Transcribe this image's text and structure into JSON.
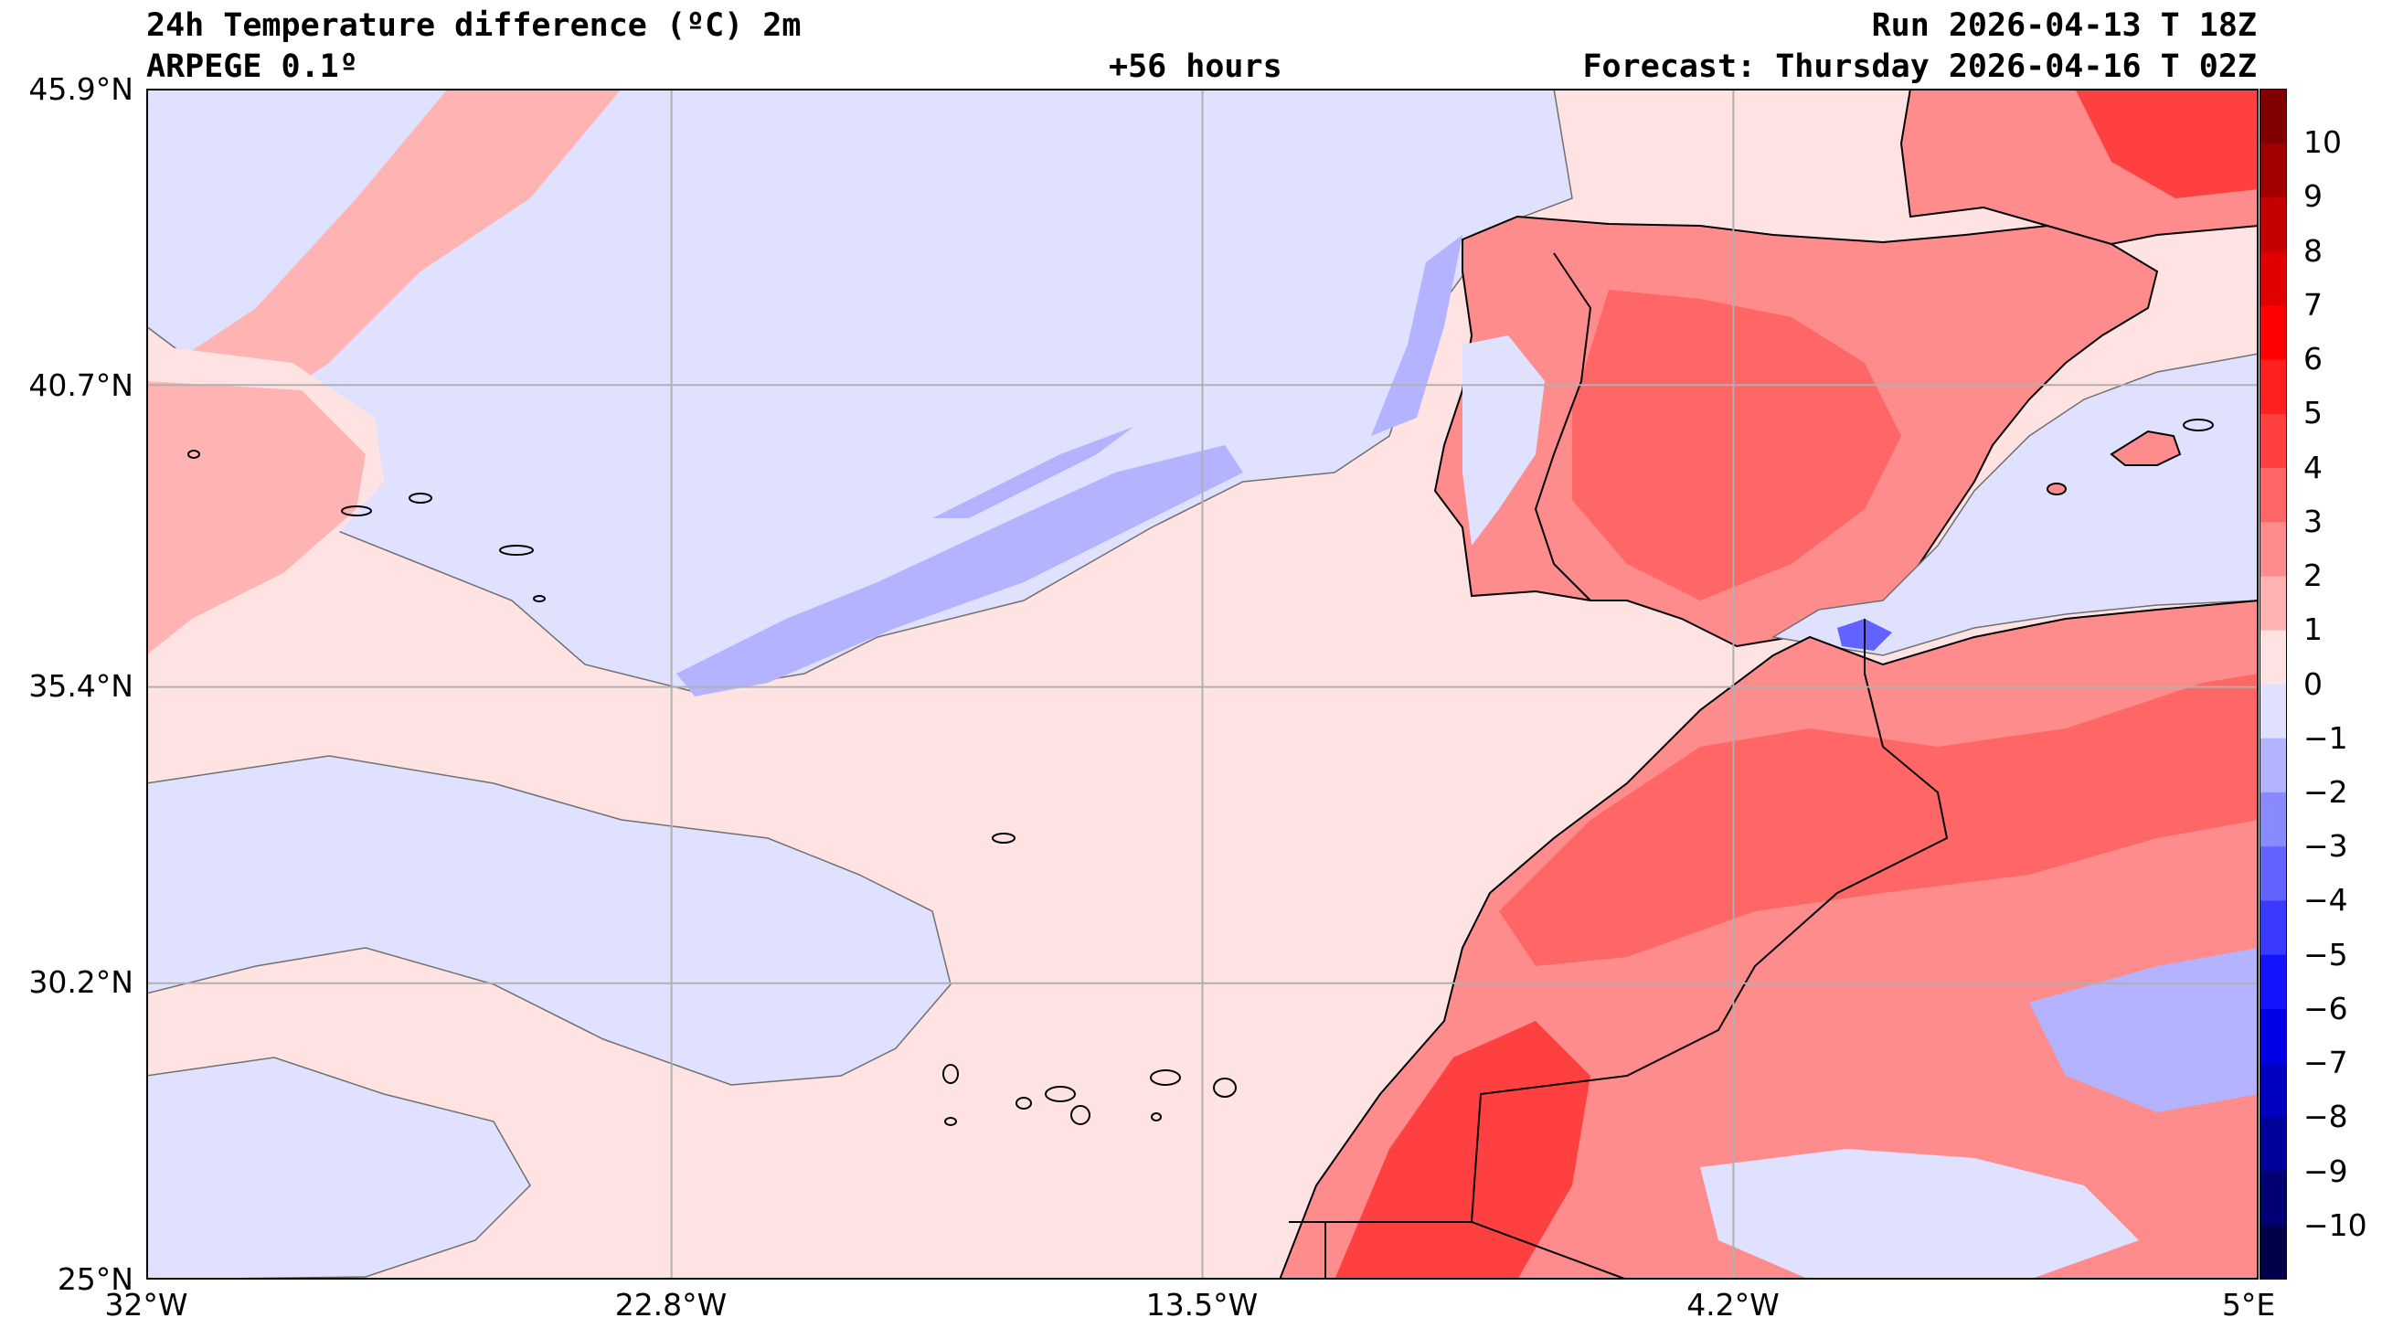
{
  "header": {
    "title": "24h Temperature difference (ºC) 2m",
    "model": "ARPEGE 0.1º",
    "lead_time": "+56 hours",
    "run": "Run 2026-04-13 T 18Z",
    "forecast": "Forecast: Thursday 2026-04-16 T 02Z"
  },
  "axes": {
    "lat_labels": [
      "45.9°N",
      "40.7°N",
      "35.4°N",
      "30.2°N",
      "25°N"
    ],
    "lon_labels": [
      "32°W",
      "22.8°W",
      "13.5°W",
      "4.2°W",
      "5°E"
    ],
    "lat_values": [
      45.9,
      40.7,
      35.4,
      30.2,
      25.0
    ],
    "lon_values": [
      -32.0,
      -22.8,
      -13.5,
      -4.2,
      5.0
    ],
    "lat_range": [
      25.0,
      45.9
    ],
    "lon_range": [
      -32.0,
      5.0
    ],
    "grid": true
  },
  "colorbar": {
    "labels": [
      "10",
      "9",
      "8",
      "7",
      "6",
      "5",
      "4",
      "3",
      "2",
      "1",
      "0",
      "−1",
      "−2",
      "−3",
      "−4",
      "−5",
      "−6",
      "−7",
      "−8",
      "−9",
      "−10"
    ],
    "range": [
      -11,
      11
    ],
    "colors_hot": [
      "#ffe3e3",
      "#ffb3b3",
      "#ff8c8c",
      "#ff6666",
      "#ff4040",
      "#ff2020",
      "#ff0000",
      "#e00000",
      "#c40000",
      "#a00000",
      "#800000"
    ],
    "colors_cold": [
      "#e0e0ff",
      "#b3b3ff",
      "#8a8aff",
      "#6262ff",
      "#3a3aff",
      "#1414ff",
      "#0000e6",
      "#0000c0",
      "#00009a",
      "#000073",
      "#00004a"
    ]
  },
  "map": {
    "ocean_background": "#ffe3e3",
    "coastline_color": "#000000",
    "gridline_color": "#b0b0b0"
  }
}
